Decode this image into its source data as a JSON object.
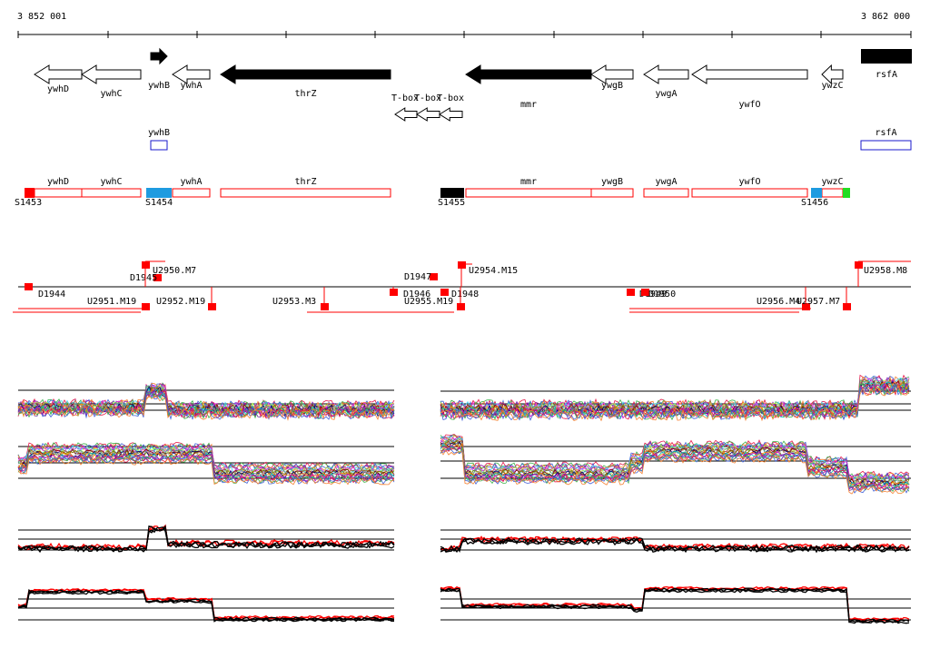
{
  "coords": {
    "start": "3 852 001",
    "end": "3 862 000"
  },
  "genes": [
    {
      "name": "ywhD",
      "dir": "L",
      "filled": false
    },
    {
      "name": "ywhC",
      "dir": "L",
      "filled": false
    },
    {
      "name": "ywhB",
      "dir": "R",
      "filled": true
    },
    {
      "name": "ywhA",
      "dir": "L",
      "filled": false
    },
    {
      "name": "thrZ",
      "dir": "L",
      "filled": true
    },
    {
      "name": "T-box",
      "dir": "L",
      "filled": false
    },
    {
      "name": "T-box",
      "dir": "L",
      "filled": false
    },
    {
      "name": "T-box",
      "dir": "L",
      "filled": false
    },
    {
      "name": "mmr",
      "dir": "L",
      "filled": true
    },
    {
      "name": "ywgB",
      "dir": "L",
      "filled": false
    },
    {
      "name": "ywgA",
      "dir": "L",
      "filled": false
    },
    {
      "name": "ywfO",
      "dir": "L",
      "filled": false
    },
    {
      "name": "ywzC",
      "dir": "L",
      "filled": false
    },
    {
      "name": "rsfA",
      "dir": "R",
      "filled": true
    }
  ],
  "forward_boxes": [
    {
      "name": "ywhB"
    },
    {
      "name": "rsfA"
    }
  ],
  "operon_boxes": [
    {
      "name": "ywhD"
    },
    {
      "name": "ywhC"
    },
    {
      "name": "ywhA"
    },
    {
      "name": "thrZ"
    },
    {
      "name": "mmr"
    },
    {
      "name": "ywgB"
    },
    {
      "name": "ywgA"
    },
    {
      "name": "ywfO"
    },
    {
      "name": "ywzC"
    }
  ],
  "promoters": [
    {
      "label": "S1453",
      "color": "#ff0000"
    },
    {
      "label": "S1454",
      "color": "#1e9be0"
    },
    {
      "label": "S1455",
      "color": "#000000"
    },
    {
      "label": "S1456",
      "color": "#1e9be0"
    },
    {
      "label": "",
      "color": "#22dd22"
    }
  ],
  "segments": [
    {
      "label": "D1944"
    },
    {
      "label": "D1945"
    },
    {
      "label": "U2950.M7"
    },
    {
      "label": "U2951.M19"
    },
    {
      "label": "U2952.M19"
    },
    {
      "label": "U2953.M3"
    },
    {
      "label": "D1946"
    },
    {
      "label": "D1947"
    },
    {
      "label": "U2955.M19"
    },
    {
      "label": "D1948"
    },
    {
      "label": "U2954.M15"
    },
    {
      "label": "D1949"
    },
    {
      "label": "D1950"
    },
    {
      "label": "U2956.M4"
    },
    {
      "label": "U2957.M7"
    },
    {
      "label": "U2958.M8"
    }
  ],
  "expression_panels": [
    {
      "name": "profiles-top-left"
    },
    {
      "name": "profiles-top-right"
    },
    {
      "name": "profiles-mid-left"
    },
    {
      "name": "profiles-mid-right"
    },
    {
      "name": "summary-red-left"
    },
    {
      "name": "summary-red-right"
    },
    {
      "name": "summary-black-left"
    },
    {
      "name": "summary-black-right"
    }
  ],
  "colors": {
    "red": "#ff0000",
    "blue": "#1a1acc",
    "cyan": "#1e9be0",
    "green": "#22dd22"
  }
}
